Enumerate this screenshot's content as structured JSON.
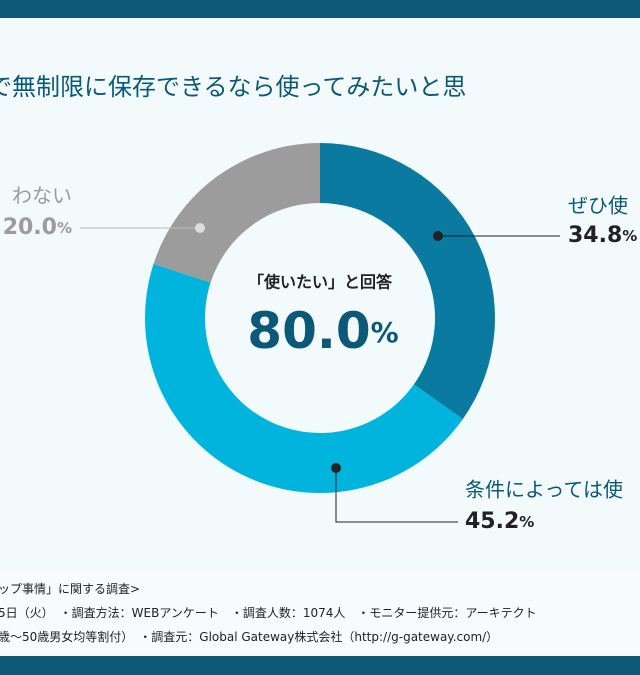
{
  "chart_data": {
    "type": "pie",
    "title": "で無制限に保存できるなら使ってみたいと思",
    "categories": [
      "ぜひ使",
      "条件によっては使",
      "わない"
    ],
    "values": [
      34.8,
      45.2,
      20.0
    ],
    "value_labels": [
      "34.8",
      "45.2",
      "20.0"
    ],
    "unit": "%",
    "colors": [
      "#0a7aa0",
      "#00b4de",
      "#9c9c9c"
    ],
    "center_label": "「使いたい」と回答",
    "center_value": {
      "value": 80,
      "label": "80.0"
    },
    "donut": true
  },
  "footnotes": [
    "ップ事情」に関する調査>",
    "5日（火）　・調査方法：WEBアンケート　・調査人数：1074人　・モニター提供元：アーキテクト",
    "歳〜50歳男女均等割付）　・調査元：Global Gateway株式会社（http://g-gateway.com/）"
  ]
}
